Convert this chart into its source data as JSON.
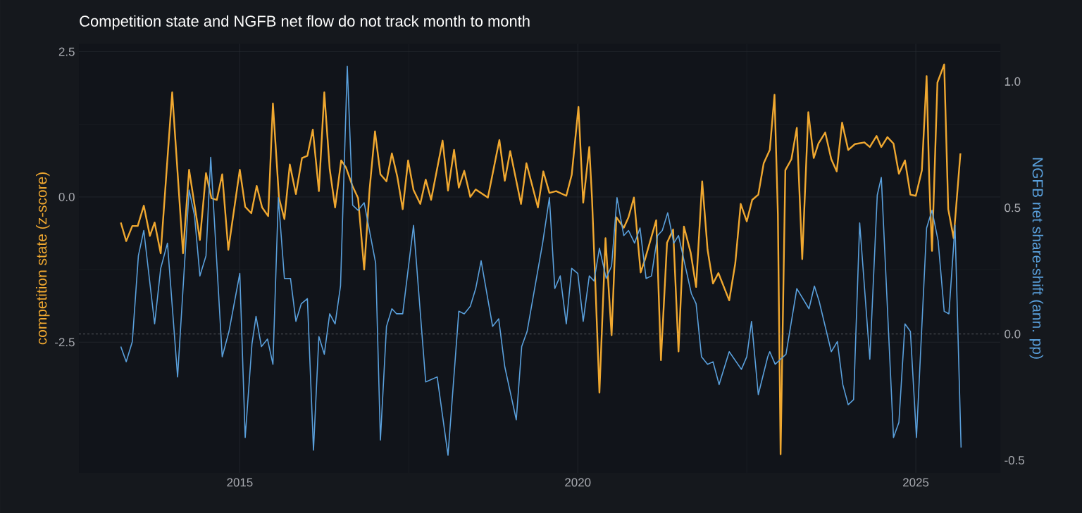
{
  "chart_data": {
    "type": "line",
    "title": "Competition state and NGFB net flow do not track month to month",
    "ylabel": "competition state (z-score)",
    "y2label": "NGFB net share-shift (ann. pp)",
    "xlim": [
      2012.62,
      2026.25
    ],
    "xticks": [
      2015,
      2020,
      2025
    ],
    "ylim": [
      -4.75,
      2.64
    ],
    "yticks": [
      -2.5,
      {
        "value": 0,
        "label": "0.0"
      },
      2.5
    ],
    "y2lim": [
      -0.55,
      1.15
    ],
    "y2ticks": [
      -0.5,
      {
        "value": 0,
        "label": "0.0"
      },
      0.5,
      {
        "value": 1,
        "label": "1.0"
      }
    ],
    "grid": true,
    "ref_lines": [
      {
        "axis": "y2",
        "value": 0,
        "color": "#8a8d92",
        "line_style": "dashed"
      }
    ],
    "series": [
      {
        "color": "#f0a830",
        "x": [
          2013.24,
          2013.32,
          2013.41,
          2013.49,
          2013.58,
          2013.67,
          2013.74,
          2013.83,
          2014.0,
          2014.16,
          2014.25,
          2014.41,
          2014.5,
          2014.58,
          2014.66,
          2014.74,
          2014.83,
          2015.0,
          2015.08,
          2015.17,
          2015.25,
          2015.33,
          2015.42,
          2015.49,
          2015.58,
          2015.66,
          2015.74,
          2015.83,
          2015.92,
          2016.0,
          2016.08,
          2016.17,
          2016.25,
          2016.33,
          2016.41,
          2016.5,
          2016.57,
          2016.67,
          2016.75,
          2016.84,
          2016.92,
          2017.0,
          2017.08,
          2017.17,
          2017.25,
          2017.33,
          2017.41,
          2017.49,
          2017.57,
          2017.67,
          2017.75,
          2017.83,
          2018.0,
          2018.08,
          2018.17,
          2018.24,
          2018.32,
          2018.41,
          2018.49,
          2018.67,
          2018.84,
          2018.92,
          2019.0,
          2019.16,
          2019.24,
          2019.41,
          2019.49,
          2019.58,
          2019.68,
          2019.83,
          2019.91,
          2020.01,
          2020.08,
          2020.17,
          2020.21,
          2020.26,
          2020.32,
          2020.41,
          2020.5,
          2020.57,
          2020.68,
          2020.75,
          2020.83,
          2020.93,
          2020.99,
          2021.16,
          2021.23,
          2021.32,
          2021.41,
          2021.49,
          2021.57,
          2021.67,
          2021.75,
          2021.84,
          2021.92,
          2022.0,
          2022.08,
          2022.24,
          2022.33,
          2022.41,
          2022.5,
          2022.58,
          2022.67,
          2022.75,
          2022.84,
          2022.91,
          2022.96,
          2023.0,
          2023.07,
          2023.16,
          2023.24,
          2023.32,
          2023.41,
          2023.49,
          2023.56,
          2023.66,
          2023.75,
          2023.83,
          2023.91,
          2024.0,
          2024.1,
          2024.24,
          2024.32,
          2024.42,
          2024.49,
          2024.58,
          2024.67,
          2024.75,
          2024.84,
          2024.92,
          2025.0,
          2025.09,
          2025.16,
          2025.2,
          2025.24,
          2025.32,
          2025.42,
          2025.48,
          2025.56,
          2025.66
        ],
        "values": [
          -0.44,
          -0.76,
          -0.5,
          -0.5,
          -0.15,
          -0.67,
          -0.44,
          -0.97,
          1.8,
          -0.97,
          0.47,
          -0.74,
          0.41,
          -0.02,
          -0.05,
          0.39,
          -0.91,
          0.47,
          -0.17,
          -0.28,
          0.19,
          -0.18,
          -0.33,
          1.61,
          -0.02,
          -0.38,
          0.56,
          0.05,
          0.67,
          0.71,
          1.16,
          0.1,
          1.8,
          0.48,
          -0.18,
          0.63,
          0.51,
          0.18,
          -0.02,
          -1.25,
          0.13,
          1.13,
          0.39,
          0.27,
          0.75,
          0.35,
          -0.21,
          0.63,
          0.12,
          -0.12,
          0.3,
          -0.05,
          0.97,
          0.11,
          0.81,
          0.16,
          0.45,
          0.0,
          0.13,
          -0.01,
          0.98,
          0.28,
          0.79,
          -0.12,
          0.58,
          -0.18,
          0.44,
          0.07,
          0.1,
          0.02,
          0.38,
          1.55,
          -0.1,
          0.86,
          -0.02,
          -1.5,
          -3.37,
          -0.71,
          -2.38,
          -0.35,
          -0.53,
          -0.35,
          -0.01,
          -1.3,
          -1.09,
          -0.4,
          -2.81,
          -0.79,
          -0.56,
          -2.66,
          -0.51,
          -0.96,
          -1.55,
          0.27,
          -0.91,
          -1.49,
          -1.31,
          -1.78,
          -1.14,
          -0.12,
          -0.42,
          -0.05,
          0.04,
          0.58,
          0.81,
          1.76,
          -0.3,
          -4.43,
          0.46,
          0.65,
          1.19,
          -1.07,
          1.46,
          0.67,
          0.92,
          1.11,
          0.65,
          0.44,
          1.28,
          0.81,
          0.91,
          0.94,
          0.86,
          1.05,
          0.86,
          1.03,
          0.92,
          0.4,
          0.63,
          0.04,
          0.02,
          0.46,
          2.08,
          0.25,
          -0.93,
          1.97,
          2.28,
          -0.21,
          -0.71,
          0.75
        ]
      },
      {
        "color": "#5aa0dc",
        "axis": "y2",
        "x": [
          2013.24,
          2013.32,
          2013.41,
          2013.5,
          2013.58,
          2013.74,
          2013.83,
          2013.93,
          2014.08,
          2014.25,
          2014.33,
          2014.41,
          2014.5,
          2014.57,
          2014.74,
          2014.84,
          2015.0,
          2015.08,
          2015.18,
          2015.24,
          2015.32,
          2015.41,
          2015.49,
          2015.57,
          2015.66,
          2015.75,
          2015.83,
          2015.91,
          2016.0,
          2016.09,
          2016.17,
          2016.25,
          2016.33,
          2016.41,
          2016.49,
          2016.59,
          2016.67,
          2016.75,
          2016.84,
          2017.01,
          2017.08,
          2017.17,
          2017.25,
          2017.32,
          2017.41,
          2017.57,
          2017.75,
          2017.92,
          2018.08,
          2018.24,
          2018.32,
          2018.41,
          2018.49,
          2018.57,
          2018.74,
          2018.83,
          2018.92,
          2019.09,
          2019.17,
          2019.25,
          2019.48,
          2019.58,
          2019.66,
          2019.74,
          2019.83,
          2019.91,
          2020.0,
          2020.08,
          2020.17,
          2020.24,
          2020.32,
          2020.42,
          2020.5,
          2020.58,
          2020.68,
          2020.75,
          2020.84,
          2020.92,
          2021.01,
          2021.09,
          2021.18,
          2021.25,
          2021.33,
          2021.42,
          2021.49,
          2021.68,
          2021.75,
          2021.83,
          2021.92,
          2022.0,
          2022.09,
          2022.24,
          2022.42,
          2022.5,
          2022.57,
          2022.67,
          2022.81,
          2022.84,
          2022.92,
          2023.08,
          2023.24,
          2023.42,
          2023.5,
          2023.57,
          2023.75,
          2023.84,
          2023.92,
          2024.0,
          2024.08,
          2024.17,
          2024.32,
          2024.43,
          2024.49,
          2024.67,
          2024.75,
          2024.84,
          2024.92,
          2025.01,
          2025.16,
          2025.24,
          2025.33,
          2025.42,
          2025.49,
          2025.58,
          2025.67
        ],
        "values": [
          -0.05,
          -0.11,
          -0.03,
          0.31,
          0.41,
          0.04,
          0.26,
          0.36,
          -0.17,
          0.57,
          0.47,
          0.23,
          0.31,
          0.7,
          -0.09,
          0.01,
          0.24,
          -0.41,
          -0.04,
          0.07,
          -0.05,
          -0.02,
          -0.12,
          0.54,
          0.22,
          0.22,
          0.05,
          0.12,
          0.14,
          -0.46,
          -0.01,
          -0.08,
          0.08,
          0.04,
          0.19,
          1.06,
          0.51,
          0.49,
          0.52,
          0.28,
          -0.42,
          0.03,
          0.1,
          0.08,
          0.08,
          0.43,
          -0.19,
          -0.17,
          -0.48,
          0.09,
          0.08,
          0.11,
          0.18,
          0.29,
          0.03,
          0.06,
          -0.13,
          -0.34,
          -0.05,
          0.01,
          0.36,
          0.54,
          0.18,
          0.23,
          0.04,
          0.26,
          0.24,
          0.05,
          0.23,
          0.21,
          0.34,
          0.22,
          0.27,
          0.54,
          0.39,
          0.41,
          0.36,
          0.42,
          0.22,
          0.23,
          0.39,
          0.41,
          0.48,
          0.36,
          0.39,
          0.16,
          0.12,
          -0.09,
          -0.12,
          -0.11,
          -0.2,
          -0.07,
          -0.14,
          -0.09,
          0.05,
          -0.24,
          -0.09,
          -0.07,
          -0.12,
          -0.08,
          0.18,
          0.1,
          0.19,
          0.13,
          -0.07,
          -0.03,
          -0.2,
          -0.28,
          -0.26,
          0.44,
          -0.1,
          0.55,
          0.62,
          -0.41,
          -0.35,
          0.04,
          0.01,
          -0.41,
          0.42,
          0.49,
          0.37,
          0.09,
          0.08,
          0.43,
          -0.45
        ]
      }
    ]
  }
}
